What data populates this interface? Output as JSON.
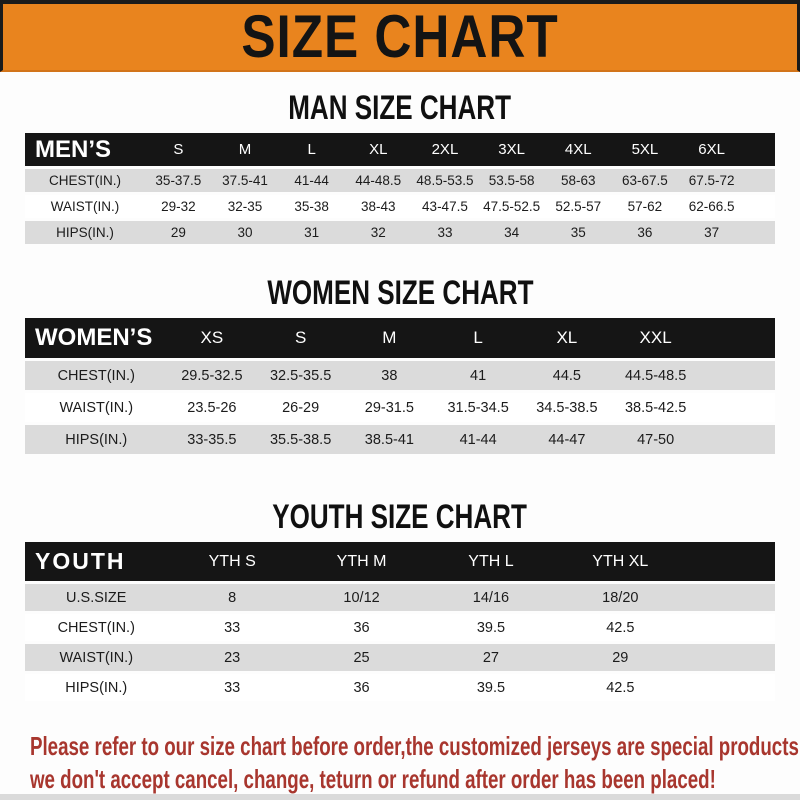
{
  "banner": {
    "title": "SIZE CHART",
    "background_color": "#E9841E",
    "text_color": "#141414"
  },
  "sections": [
    {
      "id": "men",
      "title": "MAN SIZE CHART",
      "header_label": "MEN’S",
      "columns": [
        "S",
        "M",
        "L",
        "XL",
        "2XL",
        "3XL",
        "4XL",
        "5XL",
        "6XL"
      ],
      "rows": [
        {
          "label": "CHEST(IN.)",
          "values": [
            "35-37.5",
            "37.5-41",
            "41-44",
            "44-48.5",
            "48.5-53.5",
            "53.5-58",
            "58-63",
            "63-67.5",
            "67.5-72"
          ]
        },
        {
          "label": "WAIST(IN.)",
          "values": [
            "29-32",
            "32-35",
            "35-38",
            "38-43",
            "43-47.5",
            "47.5-52.5",
            "52.5-57",
            "57-62",
            "62-66.5"
          ]
        },
        {
          "label": "HIPS(IN.)",
          "values": [
            "29",
            "30",
            "31",
            "32",
            "33",
            "34",
            "35",
            "36",
            "37"
          ]
        }
      ]
    },
    {
      "id": "women",
      "title": "WOMEN SIZE CHART",
      "header_label": "WOMEN’S",
      "columns": [
        "XS",
        "S",
        "M",
        "L",
        "XL",
        "XXL"
      ],
      "rows": [
        {
          "label": "CHEST(IN.)",
          "values": [
            "29.5-32.5",
            "32.5-35.5",
            "38",
            "41",
            "44.5",
            "44.5-48.5"
          ]
        },
        {
          "label": "WAIST(IN.)",
          "values": [
            "23.5-26",
            "26-29",
            "29-31.5",
            "31.5-34.5",
            "34.5-38.5",
            "38.5-42.5"
          ]
        },
        {
          "label": "HIPS(IN.)",
          "values": [
            "33-35.5",
            "35.5-38.5",
            "38.5-41",
            "41-44",
            "44-47",
            "47-50"
          ]
        }
      ]
    },
    {
      "id": "youth",
      "title": "YOUTH SIZE CHART",
      "header_label": "YOUTH",
      "columns": [
        "YTH S",
        "YTH M",
        "YTH L",
        "YTH XL"
      ],
      "rows": [
        {
          "label": "U.S.SIZE",
          "values": [
            "8",
            "10/12",
            "14/16",
            "18/20"
          ]
        },
        {
          "label": "CHEST(IN.)",
          "values": [
            "33",
            "36",
            "39.5",
            "42.5"
          ]
        },
        {
          "label": "WAIST(IN.)",
          "values": [
            "23",
            "25",
            "27",
            "29"
          ]
        },
        {
          "label": "HIPS(IN.)",
          "values": [
            "33",
            "36",
            "39.5",
            "42.5"
          ]
        }
      ]
    }
  ],
  "footer": {
    "line1": "Please refer to our size chart before order,the customized jerseys are special products,",
    "line2": "we don't accept cancel, change, teturn or refund after order has been placed!",
    "text_color": "#A8362E"
  },
  "colors": {
    "banner_orange": "#E9841E",
    "header_bar_black": "#151515",
    "row_stripe_gray": "#DBDBDB",
    "footer_red": "#A8362E"
  }
}
